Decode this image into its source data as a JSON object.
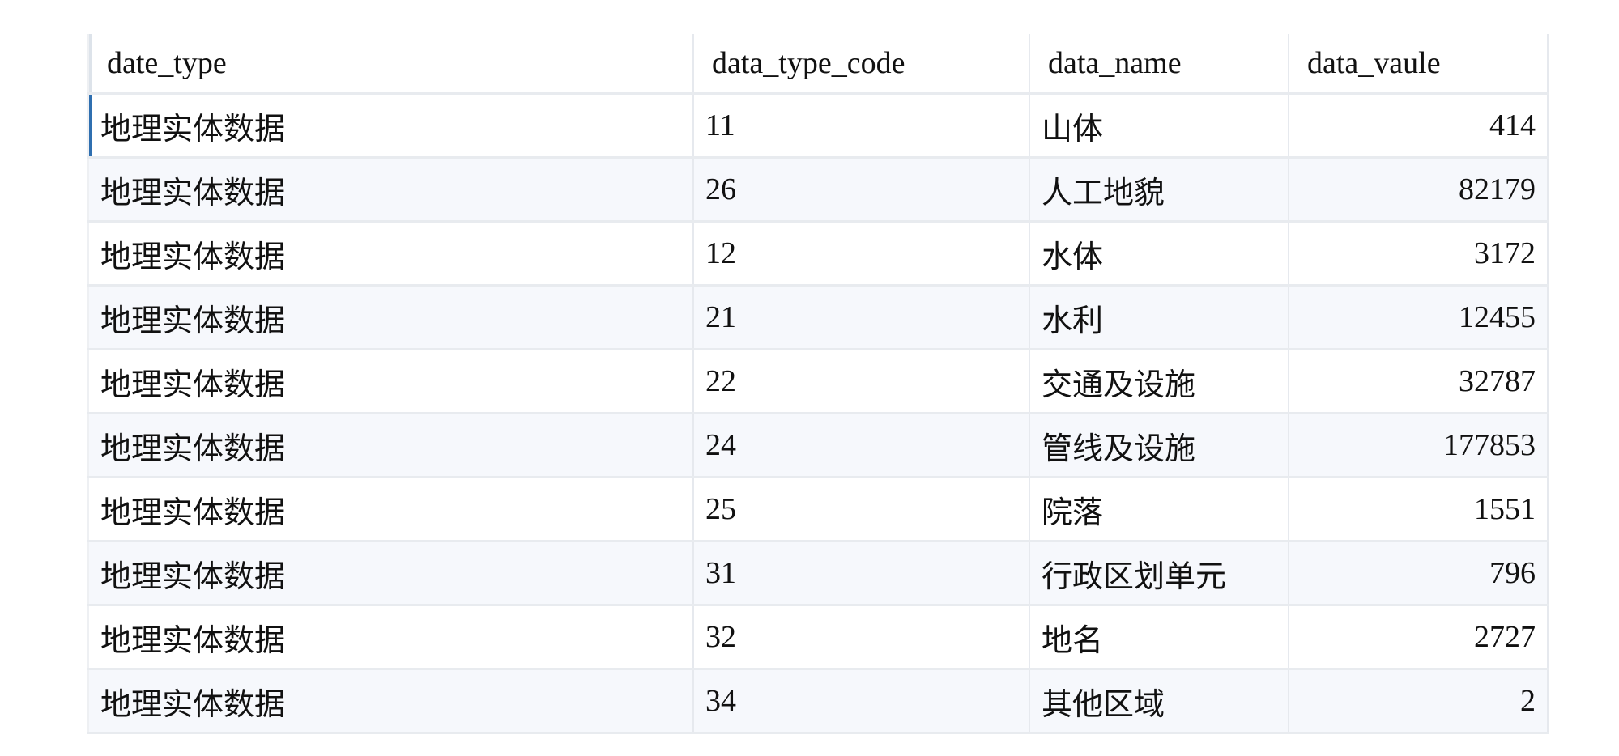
{
  "table": {
    "columns": [
      "date_type",
      "data_type_code",
      "data_name",
      "data_vaule"
    ],
    "rows": [
      [
        "地理实体数据",
        "11",
        "山体",
        "414"
      ],
      [
        "地理实体数据",
        "26",
        "人工地貌",
        "82179"
      ],
      [
        "地理实体数据",
        "12",
        "水体",
        "3172"
      ],
      [
        "地理实体数据",
        "21",
        "水利",
        "12455"
      ],
      [
        "地理实体数据",
        "22",
        "交通及设施",
        "32787"
      ],
      [
        "地理实体数据",
        "24",
        "管线及设施",
        "177853"
      ],
      [
        "地理实体数据",
        "25",
        "院落",
        "1551"
      ],
      [
        "地理实体数据",
        "31",
        "行政区划单元",
        "796"
      ],
      [
        "地理实体数据",
        "32",
        "地名",
        "2727"
      ],
      [
        "地理实体数据",
        "34",
        "其他区域",
        "2"
      ]
    ],
    "selected_row": 0,
    "selection_color": "#2f6fb0"
  }
}
